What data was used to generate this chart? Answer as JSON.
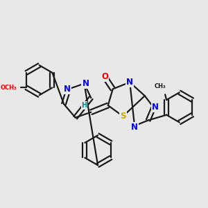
{
  "bg_color": "#e8e8e8",
  "bond_color": "#1a1a1a",
  "bond_width": 1.6,
  "atom_colors": {
    "N": "#0000ee",
    "O": "#ee0000",
    "S": "#ccaa00",
    "H": "#008888",
    "C": "#1a1a1a"
  },
  "font_size_atom": 8.5,
  "font_size_small": 7.0
}
